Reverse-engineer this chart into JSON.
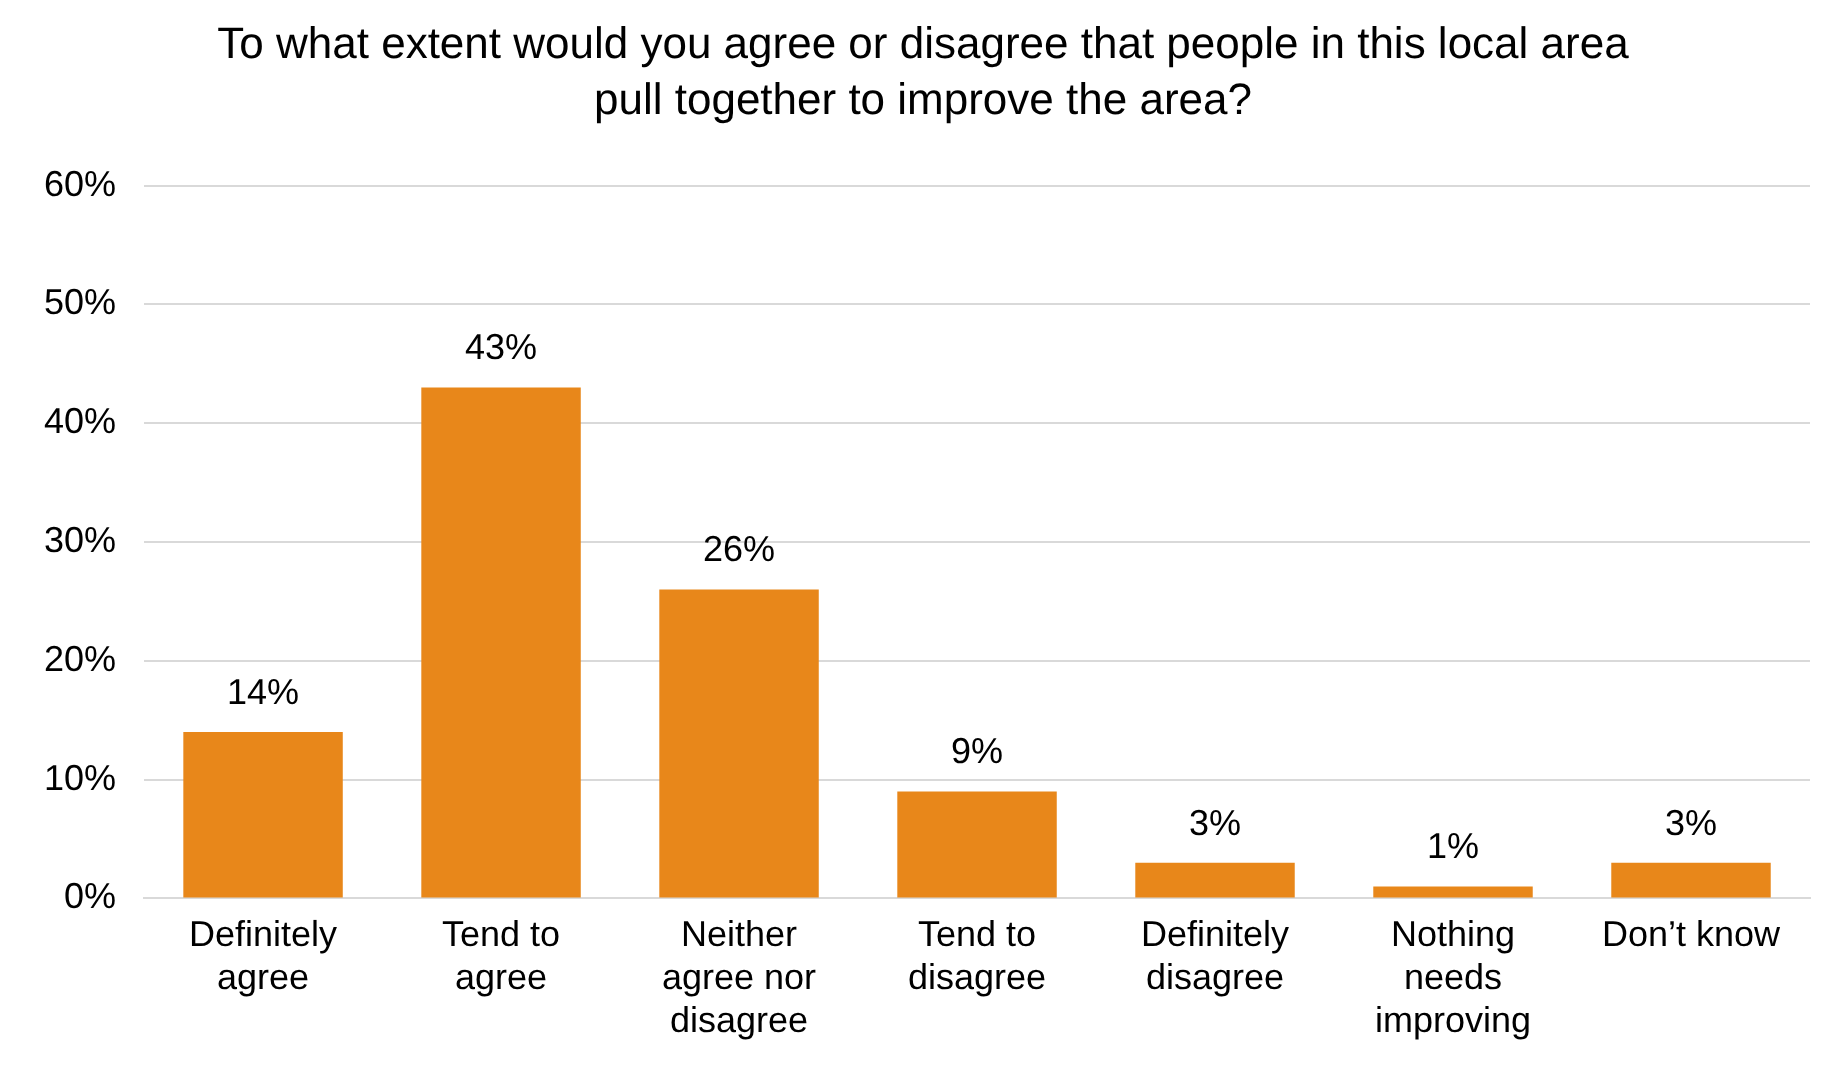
{
  "chart_data": {
    "type": "bar",
    "title": "To what extent would you agree or disagree that people in this local area pull together to improve the area?",
    "categories": [
      "Definitely agree",
      "Tend to agree",
      "Neither agree nor disagree",
      "Tend to disagree",
      "Definitely disagree",
      "Nothing needs improving",
      "Don’t know"
    ],
    "values": [
      14,
      43,
      26,
      9,
      3,
      1,
      3
    ],
    "value_labels": [
      "14%",
      "43%",
      "26%",
      "9%",
      "3%",
      "1%",
      "3%"
    ],
    "color": "#e8871a",
    "ylim": [
      0,
      60
    ],
    "yticks": [
      {
        "value": 0,
        "label": "0%"
      },
      {
        "value": 10,
        "label": "10%"
      },
      {
        "value": 20,
        "label": "20%"
      },
      {
        "value": 30,
        "label": "30%"
      },
      {
        "value": 40,
        "label": "40%"
      },
      {
        "value": 50,
        "label": "50%"
      },
      {
        "value": 60,
        "label": "60%"
      }
    ],
    "grid": "y",
    "legend": false
  }
}
